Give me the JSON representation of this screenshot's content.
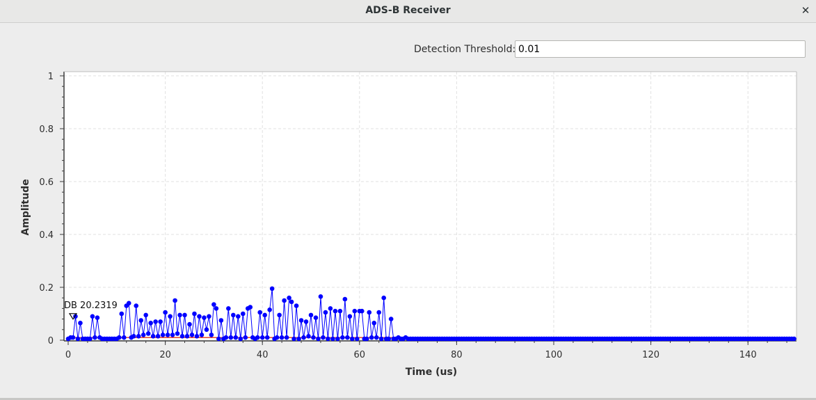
{
  "window": {
    "title": "ADS-B Receiver",
    "close_glyph": "✕"
  },
  "controls": {
    "threshold_label": "Detection Threshold:",
    "threshold_value": "0.01"
  },
  "chart_data": {
    "type": "line",
    "xlabel": "Time (us)",
    "ylabel": "Amplitude",
    "xlim": [
      0,
      150
    ],
    "ylim": [
      0,
      1
    ],
    "grid": true,
    "x_ticks": [
      0,
      20,
      40,
      60,
      80,
      100,
      120,
      140
    ],
    "y_ticks": [
      0,
      0.2,
      0.4,
      0.6,
      0.8,
      1
    ],
    "x_tick_labels": [
      "0",
      "20",
      "40",
      "60",
      "80",
      "100",
      "120",
      "140"
    ],
    "y_tick_labels": [
      "0",
      "0.2",
      "0.4",
      "0.6",
      "0.8",
      "1"
    ],
    "sample_step_us": 0.5,
    "threshold_line": {
      "value": 0.01,
      "color": "#e64a2e"
    },
    "series_color": "#0000ff",
    "marker_label": "DB 20.2319",
    "marker_x": 1,
    "values": [
      0.005,
      0.01,
      0.01,
      0.09,
      0.005,
      0.065,
      0.005,
      0.005,
      0.005,
      0.005,
      0.09,
      0.01,
      0.085,
      0.01,
      0.005,
      0.005,
      0.005,
      0.005,
      0.005,
      0.005,
      0.005,
      0.01,
      0.1,
      0.01,
      0.13,
      0.14,
      0.01,
      0.015,
      0.13,
      0.015,
      0.075,
      0.02,
      0.095,
      0.025,
      0.065,
      0.015,
      0.07,
      0.015,
      0.07,
      0.02,
      0.105,
      0.02,
      0.09,
      0.02,
      0.15,
      0.025,
      0.095,
      0.015,
      0.095,
      0.015,
      0.06,
      0.02,
      0.1,
      0.015,
      0.09,
      0.02,
      0.085,
      0.04,
      0.09,
      0.02,
      0.135,
      0.12,
      0.005,
      0.075,
      0.005,
      0.01,
      0.12,
      0.01,
      0.095,
      0.01,
      0.09,
      0.005,
      0.1,
      0.01,
      0.12,
      0.125,
      0.01,
      0.005,
      0.01,
      0.105,
      0.01,
      0.095,
      0.01,
      0.115,
      0.195,
      0.005,
      0.01,
      0.095,
      0.01,
      0.15,
      0.01,
      0.16,
      0.145,
      0.005,
      0.13,
      0.005,
      0.075,
      0.01,
      0.07,
      0.015,
      0.095,
      0.01,
      0.085,
      0.005,
      0.165,
      0.01,
      0.105,
      0.005,
      0.12,
      0.005,
      0.11,
      0.005,
      0.11,
      0.01,
      0.155,
      0.01,
      0.09,
      0.005,
      0.11,
      0.005,
      0.11,
      0.11,
      0.005,
      0.005,
      0.105,
      0.01,
      0.065,
      0.01,
      0.105,
      0.005,
      0.16,
      0.005,
      0.005,
      0.08,
      0.005,
      0.005,
      0.01,
      0.005,
      0.005,
      0.01,
      0.005,
      0.005,
      0.005,
      0.005,
      0.005,
      0.005,
      0.005,
      0.005,
      0.005,
      0.005,
      0.005,
      0.005,
      0.005,
      0.005,
      0.005,
      0.005,
      0.005,
      0.005,
      0.005,
      0.005,
      0.005,
      0.005,
      0.005,
      0.005,
      0.005,
      0.005,
      0.005,
      0.005,
      0.005,
      0.005,
      0.005,
      0.005,
      0.005,
      0.005,
      0.005,
      0.005,
      0.005,
      0.005,
      0.005,
      0.005,
      0.005,
      0.005,
      0.005,
      0.005,
      0.005,
      0.005,
      0.005,
      0.005,
      0.005,
      0.005,
      0.005,
      0.005,
      0.005,
      0.005,
      0.005,
      0.005,
      0.005,
      0.005,
      0.005,
      0.005,
      0.005,
      0.005,
      0.005,
      0.005,
      0.005,
      0.005,
      0.005,
      0.005,
      0.005,
      0.005,
      0.005,
      0.005,
      0.005,
      0.005,
      0.005,
      0.005,
      0.005,
      0.005,
      0.005,
      0.005,
      0.005,
      0.005,
      0.005,
      0.005,
      0.005,
      0.005,
      0.005,
      0.005,
      0.005,
      0.005,
      0.005,
      0.005,
      0.005,
      0.005,
      0.005,
      0.005,
      0.005,
      0.005,
      0.005,
      0.005,
      0.005,
      0.005,
      0.005,
      0.005,
      0.005,
      0.005,
      0.005,
      0.005,
      0.005,
      0.005,
      0.005,
      0.005,
      0.005,
      0.005,
      0.005,
      0.005,
      0.005,
      0.005,
      0.005,
      0.005,
      0.005,
      0.005,
      0.005,
      0.005,
      0.005,
      0.005,
      0.005,
      0.005,
      0.005,
      0.005,
      0.005,
      0.005,
      0.005,
      0.005,
      0.005,
      0.005,
      0.005,
      0.005,
      0.005,
      0.005,
      0.005,
      0.005,
      0.005,
      0.005,
      0.005,
      0.005,
      0.005,
      0.005,
      0.005,
      0.005,
      0.005,
      0.005,
      0.005,
      0.005,
      0.005,
      0.005,
      0.005,
      0.005,
      0.005,
      0.005,
      0.005,
      0.005,
      0.005,
      0.005,
      0.005,
      0.005,
      0.005,
      0.005,
      0.005,
      0.005,
      0.005
    ]
  }
}
